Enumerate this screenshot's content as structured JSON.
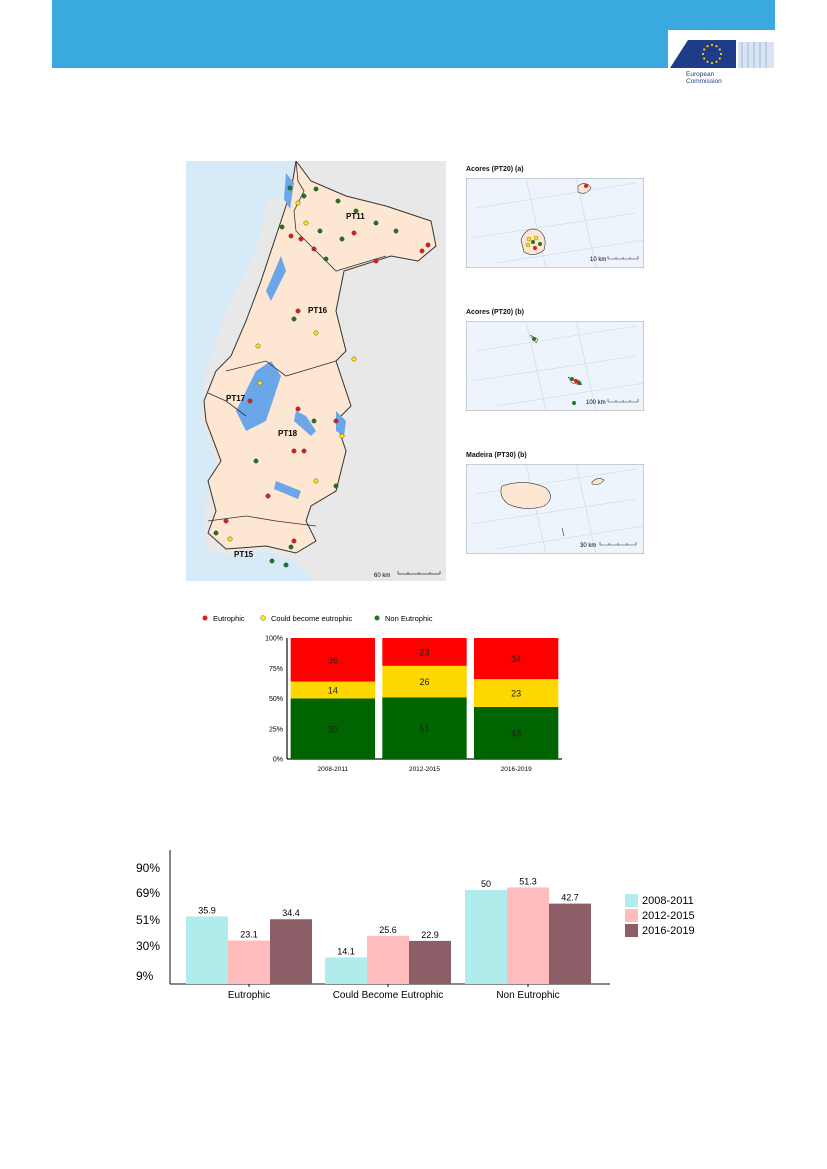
{
  "header": {
    "logo_line1": "European",
    "logo_line2": "Commission",
    "band_color": "#3aa9e0"
  },
  "map": {
    "region_labels": [
      "PT11",
      "PT16",
      "PT17",
      "PT18",
      "PT15"
    ],
    "scale_label": "60 km",
    "insets": [
      {
        "title": "Acores (PT20) (a)",
        "scale": "10 km"
      },
      {
        "title": "Acores (PT20) (b)",
        "scale": "100 km"
      },
      {
        "title": "Madeira (PT30) (b)",
        "scale": "30 km"
      }
    ]
  },
  "legend": {
    "items": [
      {
        "label": "Eutrophic",
        "color": "#e41a1c"
      },
      {
        "label": "Could become eutrophic",
        "color": "#ffe600"
      },
      {
        "label": "Non Eutrophic",
        "color": "#1b7a1b"
      }
    ]
  },
  "chart_data": [
    {
      "type": "bar",
      "stacked": true,
      "categories": [
        "2008-2011",
        "2012-2015",
        "2016-2019"
      ],
      "series": [
        {
          "name": "Non Eutrophic",
          "values": [
            50,
            51,
            43
          ],
          "color": "#006400"
        },
        {
          "name": "Could become eutrophic",
          "values": [
            14,
            26,
            23
          ],
          "color": "#ffd700"
        },
        {
          "name": "Eutrophic",
          "values": [
            36,
            23,
            34
          ],
          "color": "#ff0000"
        }
      ],
      "yticks": [
        "0%",
        "25%",
        "50%",
        "75%",
        "100%"
      ],
      "ylim": [
        0,
        100
      ]
    },
    {
      "type": "bar",
      "categories": [
        "Eutrophic",
        "Could Become Eutrophic",
        "Non Eutrophic"
      ],
      "series": [
        {
          "name": "2008-2011",
          "values": [
            35.9,
            14.1,
            50
          ],
          "color": "#b0ecec"
        },
        {
          "name": "2012-2015",
          "values": [
            23.1,
            25.6,
            51.3
          ],
          "color": "#ffbcbc"
        },
        {
          "name": "2016-2019",
          "values": [
            34.4,
            22.9,
            42.7
          ],
          "color": "#8b5e68"
        }
      ],
      "yticks": [
        "9%",
        "30%",
        "51%",
        "69%",
        "90%"
      ],
      "ylim": [
        0,
        90
      ],
      "legend": "right"
    }
  ]
}
